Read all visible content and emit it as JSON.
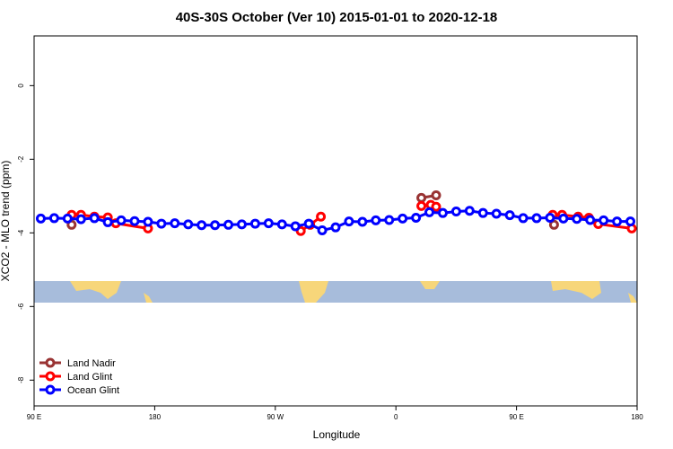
{
  "chart_data": {
    "type": "line",
    "title": "40S-30S October (Ver 10)   2015-01-01 to 2020-12-18",
    "x_label": "Longitude",
    "y_label": "XCO2 - MLO trend (ppm)",
    "xlim": [
      90,
      540
    ],
    "ylim": [
      -8.7,
      1.35
    ],
    "xticks": [
      {
        "value": 90,
        "label": "90 E"
      },
      180,
      {
        "value": 270,
        "label": "90 W"
      },
      {
        "value": 360,
        "label": "0"
      },
      {
        "value": 450,
        "label": "90 E"
      },
      {
        "value": 540,
        "label": "180"
      }
    ],
    "yticks": [
      0,
      -2,
      -4,
      -6,
      -8
    ],
    "legend": "bottom-left",
    "series": [
      {
        "name": "Land Nadir",
        "color": "#993333",
        "x": [
          118,
          379,
          390,
          478
        ],
        "values": [
          -3.78,
          -3.05,
          -2.98,
          -3.78
        ]
      },
      {
        "name": "Land Glint",
        "color": "#ff0000",
        "x": [
          118,
          125,
          135,
          145,
          151,
          175,
          289,
          296,
          304,
          379,
          386,
          390,
          477,
          484,
          496,
          504,
          511,
          536
        ],
        "values": [
          -3.51,
          -3.51,
          -3.56,
          -3.58,
          -3.74,
          -3.88,
          -3.95,
          -3.78,
          -3.56,
          -3.27,
          -3.24,
          -3.29,
          -3.51,
          -3.51,
          -3.56,
          -3.59,
          -3.76,
          -3.88
        ]
      },
      {
        "name": "Ocean Glint",
        "color": "#0000ff",
        "x": [
          95,
          105,
          115,
          125,
          135,
          145,
          155,
          165,
          175,
          185,
          195,
          205,
          215,
          225,
          235,
          245,
          255,
          265,
          275,
          285,
          295,
          305,
          315,
          325,
          335,
          345,
          355,
          365,
          375,
          385,
          395,
          405,
          415,
          425,
          435,
          445,
          455,
          465,
          475,
          485,
          495,
          505,
          515,
          525,
          535
        ],
        "values": [
          -3.61,
          -3.6,
          -3.61,
          -3.63,
          -3.6,
          -3.71,
          -3.66,
          -3.68,
          -3.7,
          -3.75,
          -3.74,
          -3.77,
          -3.79,
          -3.79,
          -3.78,
          -3.77,
          -3.75,
          -3.74,
          -3.77,
          -3.82,
          -3.75,
          -3.93,
          -3.85,
          -3.69,
          -3.7,
          -3.66,
          -3.65,
          -3.61,
          -3.59,
          -3.44,
          -3.46,
          -3.42,
          -3.4,
          -3.46,
          -3.48,
          -3.52,
          -3.6,
          -3.6,
          -3.59,
          -3.61,
          -3.62,
          -3.65,
          -3.66,
          -3.69,
          -3.69
        ]
      }
    ]
  }
}
